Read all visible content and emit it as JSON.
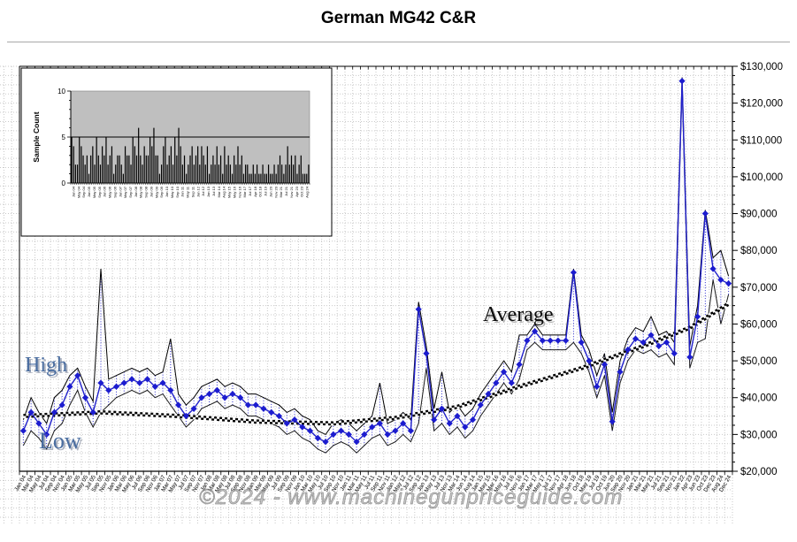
{
  "title": "German MG42 C&R",
  "watermark": "©2024 - www.machinegunpriceguide.com",
  "annotations": {
    "high": "High",
    "low": "Low",
    "average": "Average"
  },
  "chart_data": [
    {
      "type": "line",
      "title": "German MG42 C&R",
      "xlabel": "",
      "ylabel": "",
      "ylim": [
        20000,
        130000
      ],
      "ytick_step": 10000,
      "ytick_labels": [
        "$20,000",
        "$30,000",
        "$40,000",
        "$50,000",
        "$60,000",
        "$70,000",
        "$80,000",
        "$90,000",
        "$100,000",
        "$110,000",
        "$120,000",
        "$130,000"
      ],
      "grid": "dotted",
      "legend_position": "none",
      "x": [
        "Jan 04",
        "Mar 04",
        "May 04",
        "Jul 04",
        "Sep 04",
        "Nov 04",
        "Jan 05",
        "Mar 05",
        "May 05",
        "Jul 05",
        "Sep 05",
        "Nov 05",
        "Jan 06",
        "Mar 06",
        "May 06",
        "Jul 06",
        "Sep 06",
        "Nov 06",
        "Jan 07",
        "Mar 07",
        "May 07",
        "Jul 07",
        "Sep 07",
        "Nov 07",
        "Jan 08",
        "Mar 08",
        "May 08",
        "Jul 08",
        "Sep 08",
        "Nov 08",
        "Jan 09",
        "Mar 09",
        "May 09",
        "Jul 09",
        "Sep 09",
        "Nov 09",
        "Jan 10",
        "Mar 10",
        "May 10",
        "Jul 10",
        "Sep 10",
        "Nov 10",
        "Jan 11",
        "Mar 11",
        "May 11",
        "Jul 11",
        "Sep 11",
        "Nov 11",
        "Jan 12",
        "May 12",
        "Jul 12",
        "Sep 12",
        "Jan 13",
        "May 13",
        "Jul 13",
        "Nov 13",
        "Mar 14",
        "Jun 14",
        "Aug 14",
        "Jan 15",
        "May 15",
        "Mar 16",
        "May 16",
        "Jul 16",
        "Nov 16",
        "Jan 17",
        "Mar 17",
        "May 17",
        "Jul 17",
        "Nov 17",
        "Apr 18",
        "Jun 18",
        "Oct 18",
        "May 19",
        "Jul 19",
        "Oct 19",
        "Jun 20",
        "Sep 20",
        "Nov 20",
        "Jan 21",
        "Mar 21",
        "May 21",
        "Jul 21",
        "Sep 21",
        "Nov 21",
        "Jan 22",
        "Apr 23",
        "Jun 23",
        "Oct 23",
        "Dec 23",
        "Aug 24",
        "Dec 24"
      ],
      "series": [
        {
          "name": "High",
          "color": "#000000",
          "values": [
            34000,
            40000,
            36000,
            33000,
            40000,
            42000,
            46000,
            48000,
            43000,
            39000,
            75000,
            45000,
            46000,
            47000,
            48000,
            47000,
            48000,
            46000,
            47000,
            56000,
            41000,
            38000,
            40000,
            43000,
            44000,
            45000,
            43000,
            44000,
            43000,
            41000,
            41000,
            40000,
            39000,
            38000,
            36000,
            37000,
            35000,
            34000,
            31000,
            30000,
            33000,
            34000,
            33000,
            31000,
            33000,
            35000,
            44000,
            33000,
            34000,
            36000,
            34000,
            66000,
            54000,
            37000,
            47000,
            36000,
            38000,
            35000,
            37000,
            41000,
            44000,
            47000,
            50000,
            47000,
            57000,
            57000,
            60000,
            57000,
            57000,
            57000,
            57000,
            75000,
            57000,
            53000,
            46000,
            52000,
            36000,
            50000,
            56000,
            59000,
            58000,
            62000,
            57000,
            58000,
            55000,
            127000,
            54000,
            65000,
            91000,
            78000,
            80000,
            73000
          ]
        },
        {
          "name": "Average",
          "color": "#2020cc",
          "marker": "diamond",
          "values": [
            31000,
            36000,
            33000,
            30000,
            36000,
            38000,
            43000,
            46000,
            40000,
            36000,
            44000,
            42000,
            43000,
            44000,
            45000,
            44000,
            45000,
            43000,
            44000,
            42000,
            38000,
            35000,
            37000,
            40000,
            41000,
            42000,
            40000,
            41000,
            40000,
            38000,
            38000,
            37000,
            36000,
            35000,
            33000,
            34000,
            32000,
            31000,
            29000,
            28000,
            30000,
            31000,
            30000,
            28000,
            30000,
            32000,
            33000,
            30000,
            31000,
            33000,
            31000,
            64000,
            52000,
            34000,
            37000,
            33000,
            35000,
            32000,
            34000,
            38000,
            41000,
            44000,
            47000,
            44000,
            49000,
            55500,
            58000,
            55500,
            55500,
            55500,
            55500,
            74000,
            55000,
            50000,
            43000,
            49000,
            33500,
            47000,
            53000,
            56000,
            55000,
            57000,
            54000,
            55000,
            52000,
            126000,
            51000,
            62000,
            90000,
            75000,
            72000,
            71000
          ]
        },
        {
          "name": "Low",
          "color": "#000000",
          "values": [
            27000,
            31000,
            29000,
            26000,
            31000,
            33000,
            38000,
            42000,
            36000,
            32000,
            36000,
            38000,
            40000,
            41000,
            42000,
            41000,
            42000,
            40000,
            41000,
            38000,
            35000,
            32000,
            34000,
            37000,
            38000,
            39000,
            37000,
            38000,
            37000,
            35000,
            35000,
            34000,
            33000,
            32000,
            30000,
            31000,
            29000,
            28000,
            26000,
            25000,
            27000,
            28000,
            27000,
            25000,
            27000,
            29000,
            30000,
            27000,
            28000,
            30000,
            28000,
            33000,
            48000,
            31000,
            33000,
            30000,
            32000,
            29000,
            31000,
            35000,
            38000,
            41000,
            44000,
            41000,
            45000,
            53000,
            55000,
            53000,
            53000,
            53000,
            53000,
            55000,
            52000,
            47000,
            40000,
            46000,
            31000,
            44000,
            50000,
            53000,
            52000,
            53000,
            51000,
            52000,
            49000,
            125000,
            48000,
            55000,
            56000,
            72000,
            60000,
            68000
          ]
        },
        {
          "name": "Trend",
          "style": "checkered",
          "knots": [
            [
              0,
              35000
            ],
            [
              10,
              36000
            ],
            [
              20,
              35000
            ],
            [
              30,
              33500
            ],
            [
              40,
              33000
            ],
            [
              48,
              34500
            ],
            [
              56,
              37500
            ],
            [
              64,
              43000
            ],
            [
              72,
              48000
            ],
            [
              80,
              54000
            ],
            [
              86,
              59000
            ],
            [
              91,
              65500
            ]
          ]
        }
      ]
    },
    {
      "type": "bar",
      "ylabel": "Sample Count",
      "ylim": [
        0,
        10
      ],
      "yticks": [
        0,
        5,
        10
      ],
      "ytick_labels": [
        "0",
        "5",
        "10"
      ],
      "refline": 5,
      "plot_bg": "#bfbfbf",
      "bar_color": "#000000",
      "values": [
        5,
        4,
        2,
        2,
        5,
        4,
        3,
        2,
        3,
        1,
        3,
        4,
        2,
        5,
        3,
        2,
        4,
        3,
        5,
        2,
        3,
        4,
        1,
        2,
        3,
        3,
        2,
        1,
        4,
        3,
        3,
        2,
        5,
        4,
        3,
        6,
        3,
        2,
        4,
        3,
        3,
        5,
        4,
        6,
        3,
        3,
        1,
        2,
        4,
        5,
        2,
        3,
        4,
        2,
        5,
        3,
        6,
        4,
        2,
        3,
        1,
        2,
        3,
        4,
        2,
        3,
        4,
        2,
        4,
        3,
        2,
        4,
        1,
        2,
        3,
        2,
        4,
        2,
        3,
        1,
        4,
        2,
        3,
        2,
        1,
        3,
        2,
        4,
        2,
        3,
        1,
        2,
        2,
        1,
        1,
        2,
        1,
        2,
        1,
        1,
        2,
        1,
        1,
        2,
        1,
        1,
        2,
        1,
        2,
        3,
        2,
        1,
        2,
        4,
        2,
        3,
        2,
        3,
        1,
        2,
        3,
        1,
        1,
        1,
        2
      ],
      "xtick_labels": [
        "Jan 04",
        "May 04",
        "Sep 04",
        "Jan 05",
        "May 05",
        "Sep 05",
        "Jan 06",
        "May 06",
        "Sep 06",
        "Jan 07",
        "May 07",
        "Sep 07",
        "Jan 08",
        "May 08",
        "Sep 08",
        "Jan 09",
        "May 09",
        "Sep 09",
        "Jan 10",
        "May 10",
        "Sep 10",
        "Jan 11",
        "May 11",
        "Sep 11",
        "Jan 12",
        "Jul 12",
        "Jan 13",
        "Jul 13",
        "Mar 14",
        "Aug 14",
        "May 15",
        "May 16",
        "Nov 16",
        "Mar 17",
        "Jul 17",
        "Apr 18",
        "Oct 18",
        "Jul 19",
        "Jun 20",
        "Nov 20",
        "Mar 21",
        "Jul 21",
        "Nov 21",
        "Apr 23",
        "Oct 23",
        "Aug 24"
      ]
    }
  ]
}
